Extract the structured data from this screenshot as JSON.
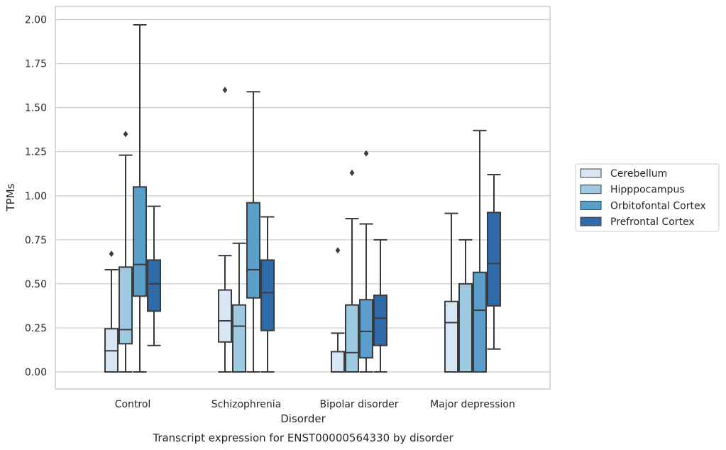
{
  "chart_data": {
    "type": "box",
    "title": "Transcript expression for ENST00000564330 by disorder",
    "xlabel": "Disorder",
    "ylabel": "TPMs",
    "ylim": [
      -0.1,
      2.07
    ],
    "yticks": [
      "0.00",
      "0.25",
      "0.50",
      "0.75",
      "1.00",
      "1.25",
      "1.50",
      "1.75",
      "2.00"
    ],
    "ytick_values": [
      0,
      0.25,
      0.5,
      0.75,
      1.0,
      1.25,
      1.5,
      1.75,
      2.0
    ],
    "grid": true,
    "legend_position": "right",
    "categories": [
      "Control",
      "Schizophrenia",
      "Bipolar disorder",
      "Major depression"
    ],
    "series": [
      {
        "name": "Cerebellum",
        "color": "#d6e6f4",
        "boxes": [
          {
            "whisker_low": 0.0,
            "q1": 0.0,
            "median": 0.12,
            "q3": 0.245,
            "whisker_high": 0.58,
            "outliers": [
              0.67
            ]
          },
          {
            "whisker_low": 0.0,
            "q1": 0.17,
            "median": 0.29,
            "q3": 0.465,
            "whisker_high": 0.66,
            "outliers": [
              1.6
            ]
          },
          {
            "whisker_low": 0.0,
            "q1": 0.0,
            "median": 0.0,
            "q3": 0.115,
            "whisker_high": 0.22,
            "outliers": [
              0.69
            ]
          },
          {
            "whisker_low": 0.0,
            "q1": 0.0,
            "median": 0.28,
            "q3": 0.4,
            "whisker_high": 0.9,
            "outliers": []
          }
        ]
      },
      {
        "name": "Hipppocampus",
        "color": "#9ecae1",
        "boxes": [
          {
            "whisker_low": 0.0,
            "q1": 0.16,
            "median": 0.24,
            "q3": 0.595,
            "whisker_high": 1.23,
            "outliers": [
              1.35
            ]
          },
          {
            "whisker_low": 0.0,
            "q1": 0.0,
            "median": 0.26,
            "q3": 0.38,
            "whisker_high": 0.73,
            "outliers": []
          },
          {
            "whisker_low": 0.0,
            "q1": 0.0,
            "median": 0.11,
            "q3": 0.38,
            "whisker_high": 0.87,
            "outliers": [
              1.13
            ]
          },
          {
            "whisker_low": 0.0,
            "q1": 0.0,
            "median": 0.0,
            "q3": 0.5,
            "whisker_high": 0.75,
            "outliers": []
          }
        ]
      },
      {
        "name": "Orbitofontal Cortex",
        "color": "#5a9ecb",
        "boxes": [
          {
            "whisker_low": 0.0,
            "q1": 0.43,
            "median": 0.61,
            "q3": 1.05,
            "whisker_high": 1.97,
            "outliers": []
          },
          {
            "whisker_low": 0.0,
            "q1": 0.42,
            "median": 0.58,
            "q3": 0.96,
            "whisker_high": 1.59,
            "outliers": []
          },
          {
            "whisker_low": 0.0,
            "q1": 0.08,
            "median": 0.23,
            "q3": 0.41,
            "whisker_high": 0.84,
            "outliers": [
              1.24
            ]
          },
          {
            "whisker_low": 0.0,
            "q1": 0.0,
            "median": 0.35,
            "q3": 0.565,
            "whisker_high": 1.37,
            "outliers": []
          }
        ]
      },
      {
        "name": "Prefrontal Cortex",
        "color": "#2f6aa9",
        "boxes": [
          {
            "whisker_low": 0.15,
            "q1": 0.345,
            "median": 0.5,
            "q3": 0.635,
            "whisker_high": 0.94,
            "outliers": []
          },
          {
            "whisker_low": 0.0,
            "q1": 0.235,
            "median": 0.45,
            "q3": 0.635,
            "whisker_high": 0.88,
            "outliers": []
          },
          {
            "whisker_low": 0.0,
            "q1": 0.15,
            "median": 0.305,
            "q3": 0.435,
            "whisker_high": 0.75,
            "outliers": []
          },
          {
            "whisker_low": 0.13,
            "q1": 0.375,
            "median": 0.615,
            "q3": 0.905,
            "whisker_high": 1.12,
            "outliers": []
          }
        ]
      }
    ]
  }
}
